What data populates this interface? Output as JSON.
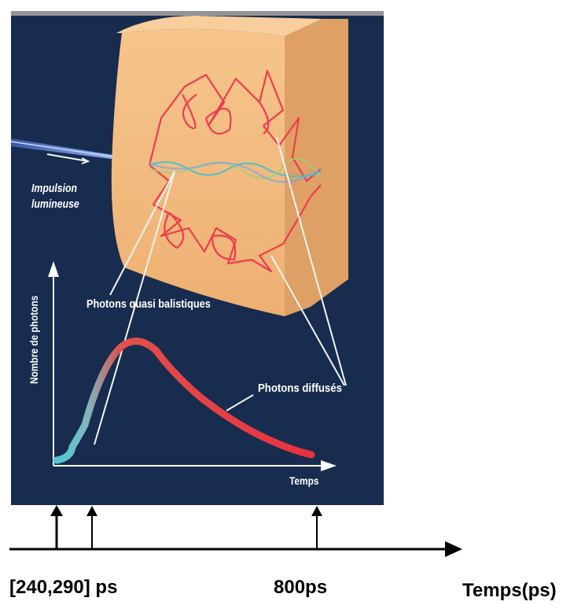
{
  "figure": {
    "labels": {
      "impulsion_line1": "Impulsion",
      "impulsion_line2": "lumineuse",
      "quasi_ballistic": "Photons quasi balistiques",
      "diffused": "Photons diffusés",
      "y_axis": "Nombre de photons",
      "x_axis": "Temps"
    },
    "colors": {
      "panel_bg": "#172c4e",
      "tissue": "#f2b97a",
      "tissue_side": "#e0a468",
      "diffused_path": "#ef3b52",
      "ballistic_path": "#4fc0c8",
      "laser": "#6f8fe0",
      "curve": "#e8323e",
      "curve_start": "#4fc8d8"
    },
    "icons": [
      "tissue-block",
      "laser-beam",
      "photon-path",
      "arrow"
    ]
  },
  "timeline": {
    "label_early": "[240,290] ps",
    "label_mid": "800ps",
    "label_axis": "Temps(ps)"
  }
}
